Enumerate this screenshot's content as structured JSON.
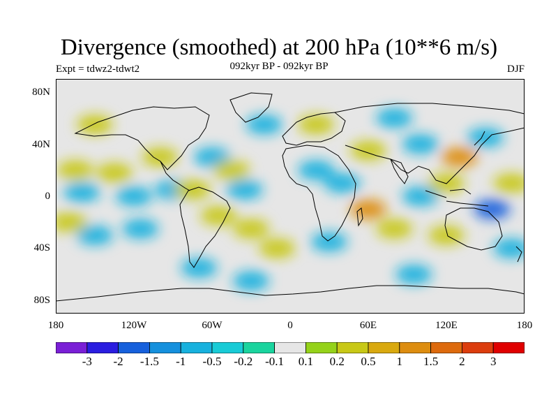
{
  "title": "Divergence (smoothed) at 200 hPa (10**6 m/s)",
  "subtitle_left": "Expt = tdwz2-tdwt2",
  "subtitle_center": "092kyr BP - 092kyr BP",
  "subtitle_right": "DJF",
  "colors": {
    "background": "#e6e6e6",
    "coastline": "#000000",
    "frame": "#000000"
  },
  "map": {
    "lat_ticks": [
      "80N",
      "40N",
      "0",
      "40S",
      "80S"
    ],
    "lon_ticks": [
      "180",
      "120W",
      "60W",
      "0",
      "60E",
      "120E",
      "180"
    ]
  },
  "colorbar": {
    "colors": [
      "#7a1fd6",
      "#2a1de0",
      "#1660dc",
      "#1590dd",
      "#17b1de",
      "#18cbd6",
      "#1ad49e",
      "#e6e6e6",
      "#95d21a",
      "#c8c816",
      "#d9a90f",
      "#dd8d10",
      "#dd6a0d",
      "#dc3d0d",
      "#e00000"
    ],
    "labels": [
      "-3",
      "-2",
      "-1.5",
      "-1",
      "-0.5",
      "-0.2",
      "-0.1",
      "0.1",
      "0.2",
      "0.5",
      "1",
      "1.5",
      "2",
      "3"
    ]
  },
  "field_blobs": [
    {
      "lon": -165,
      "lat": 20,
      "v": 1
    },
    {
      "lon": -135,
      "lat": 18,
      "v": 1
    },
    {
      "lon": -160,
      "lat": 3,
      "v": -1
    },
    {
      "lon": -120,
      "lat": 0,
      "v": -1
    },
    {
      "lon": -90,
      "lat": 5,
      "v": -1
    },
    {
      "lon": -75,
      "lat": 5,
      "v": 1
    },
    {
      "lon": -100,
      "lat": 30,
      "v": 1
    },
    {
      "lon": -60,
      "lat": 30,
      "v": -1
    },
    {
      "lon": -35,
      "lat": 5,
      "v": -1
    },
    {
      "lon": -45,
      "lat": 20,
      "v": 1
    },
    {
      "lon": -55,
      "lat": -15,
      "v": 1
    },
    {
      "lon": -30,
      "lat": -25,
      "v": 1
    },
    {
      "lon": -115,
      "lat": -25,
      "v": -1
    },
    {
      "lon": -150,
      "lat": -30,
      "v": -1
    },
    {
      "lon": -170,
      "lat": -20,
      "v": 1
    },
    {
      "lon": -70,
      "lat": -55,
      "v": -1
    },
    {
      "lon": -10,
      "lat": -40,
      "v": 1
    },
    {
      "lon": 20,
      "lat": 20,
      "v": -1
    },
    {
      "lon": 40,
      "lat": 10,
      "v": -1
    },
    {
      "lon": 60,
      "lat": -10,
      "v": 2
    },
    {
      "lon": 30,
      "lat": -35,
      "v": -1
    },
    {
      "lon": 80,
      "lat": -25,
      "v": 1
    },
    {
      "lon": 100,
      "lat": 0,
      "v": -1
    },
    {
      "lon": 120,
      "lat": 10,
      "v": 1
    },
    {
      "lon": 130,
      "lat": 30,
      "v": 2
    },
    {
      "lon": 155,
      "lat": -10,
      "v": -2
    },
    {
      "lon": 170,
      "lat": 10,
      "v": 1
    },
    {
      "lon": 150,
      "lat": 45,
      "v": -1
    },
    {
      "lon": 60,
      "lat": 35,
      "v": 1
    },
    {
      "lon": 100,
      "lat": 40,
      "v": -1
    },
    {
      "lon": -20,
      "lat": 55,
      "v": -1
    },
    {
      "lon": 20,
      "lat": 55,
      "v": 1
    },
    {
      "lon": 120,
      "lat": -30,
      "v": 1
    },
    {
      "lon": 170,
      "lat": -40,
      "v": -1
    },
    {
      "lon": 95,
      "lat": -60,
      "v": -1
    },
    {
      "lon": -30,
      "lat": -65,
      "v": -1
    },
    {
      "lon": -150,
      "lat": 55,
      "v": 1
    },
    {
      "lon": 80,
      "lat": 60,
      "v": -1
    }
  ]
}
